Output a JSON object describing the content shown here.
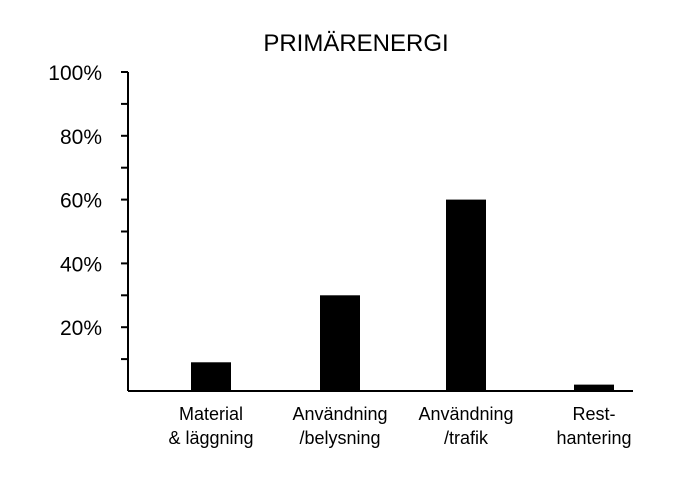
{
  "chart_data": {
    "type": "bar",
    "title": "PRIMÄRENERGI",
    "xlabel": "",
    "ylabel": "",
    "ylim": [
      0,
      100
    ],
    "grid": false,
    "legend": "none",
    "y_ticks": [
      {
        "value": 20,
        "label": "20%"
      },
      {
        "value": 40,
        "label": "40%"
      },
      {
        "value": 60,
        "label": "60%"
      },
      {
        "value": 80,
        "label": "80%"
      },
      {
        "value": 100,
        "label": "100%"
      }
    ],
    "minor_ticks": [
      10,
      30,
      50,
      70,
      90
    ],
    "categories": [
      {
        "lines": [
          "Material",
          "& läggning"
        ]
      },
      {
        "lines": [
          "Användning",
          "/belysning"
        ]
      },
      {
        "lines": [
          "Användning",
          "/trafik"
        ]
      },
      {
        "lines": [
          "Rest-",
          "hantering"
        ]
      }
    ],
    "values": [
      9,
      30,
      60,
      2
    ],
    "bar_color": "#000000"
  }
}
